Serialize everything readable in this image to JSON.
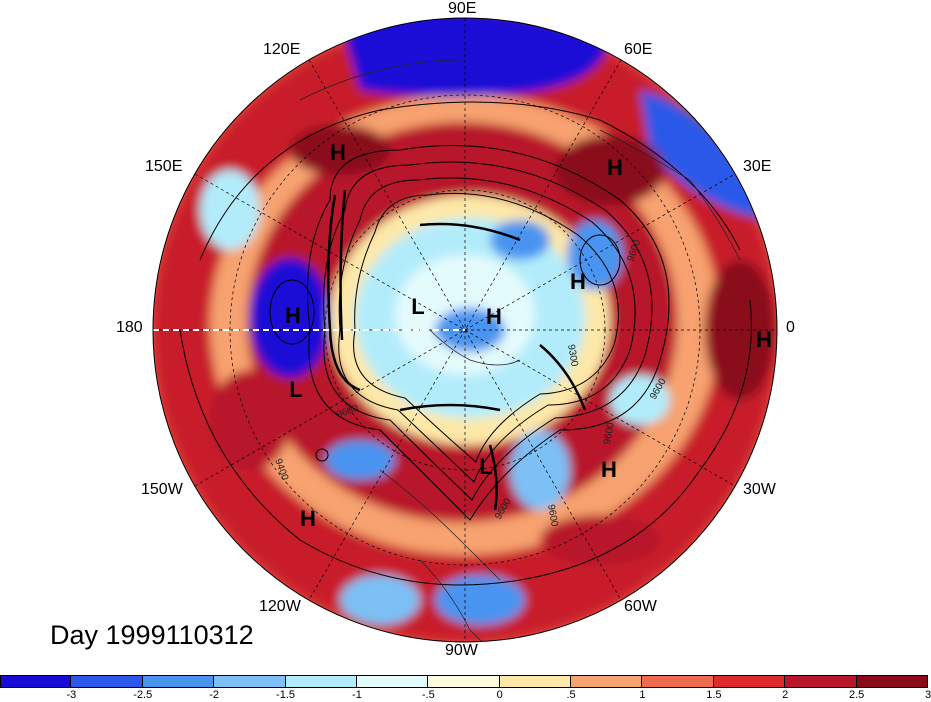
{
  "map": {
    "projection": "north-polar-stereographic",
    "longitude_labels": {
      "top": "90E",
      "top_left": "120E",
      "top_right": "60E",
      "upper_left": "150E",
      "upper_right": "30E",
      "left": "180",
      "right": "0",
      "lower_left": "150W",
      "lower_right": "30W",
      "bottom_left": "120W",
      "bottom_right": "60W",
      "bottom": "90W"
    },
    "pressure_centers": [
      {
        "symbol": "H"
      },
      {
        "symbol": "H"
      },
      {
        "symbol": "H"
      },
      {
        "symbol": "H"
      },
      {
        "symbol": "H"
      },
      {
        "symbol": "H"
      },
      {
        "symbol": "H"
      },
      {
        "symbol": "H"
      },
      {
        "symbol": "L"
      },
      {
        "symbol": "L"
      },
      {
        "symbol": "L"
      }
    ],
    "contour_labels": [
      "9600",
      "9600",
      "9600",
      "9300",
      "9600",
      "9400",
      "9600",
      "9600"
    ]
  },
  "day_label": "Day 1999110312",
  "colorbar": {
    "colors": [
      "#1a0ad6",
      "#2b58e8",
      "#4a94f0",
      "#7cc0f6",
      "#b2ecfb",
      "#e4fbfc",
      "#fffbe0",
      "#fde8a8",
      "#f7a26f",
      "#ee6b4d",
      "#dd2a2a",
      "#b8162a",
      "#8a0a1c"
    ],
    "tick_labels": [
      "-3",
      "-2.5",
      "-2",
      "-1.5",
      "-1",
      "-.5",
      "0",
      ".5",
      "1",
      "1.5",
      "2",
      "2.5",
      "3"
    ]
  }
}
